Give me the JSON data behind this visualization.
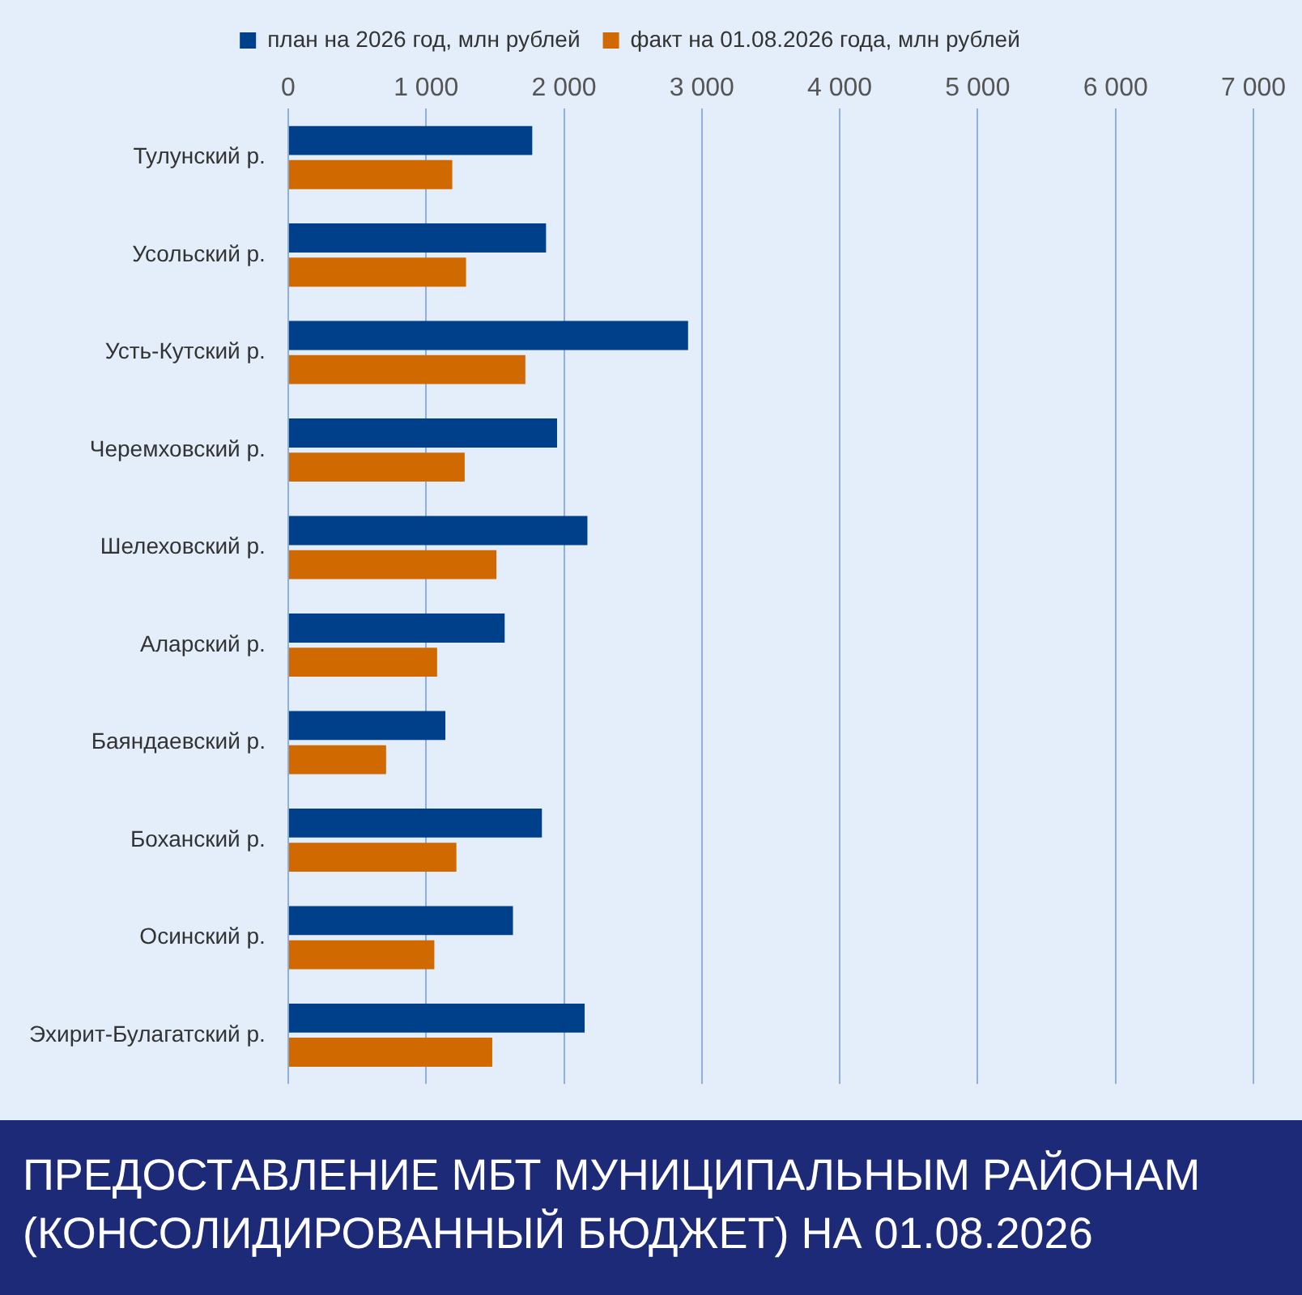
{
  "chart_data": {
    "type": "bar",
    "orientation": "horizontal",
    "title": "ПРЕДОСТАВЛЕНИЕ МБТ МУНИЦИПАЛЬНЫМ РАЙОНАМ (КОНСОЛИДИРОВАННЫЙ БЮДЖЕТ) НА 01.08.2026",
    "categories": [
      "Тулунский р.",
      "Усольский р.",
      "Усть-Кутский р.",
      "Черемховский р.",
      "Шелеховский р.",
      "Аларский р.",
      "Баяндаевский р.",
      "Боханский р.",
      "Осинский р.",
      "Эхирит-Булагатский р."
    ],
    "series": [
      {
        "name": "план на 2026 год, млн рублей",
        "color": "#003f8a",
        "values": [
          1770,
          1870,
          2900,
          1950,
          2170,
          1570,
          1140,
          1840,
          1630,
          2150
        ]
      },
      {
        "name": "факт на 01.08.2026 года, млн рублей",
        "color": "#d06a00",
        "values": [
          1190,
          1290,
          1720,
          1280,
          1510,
          1080,
          710,
          1220,
          1060,
          1480
        ]
      }
    ],
    "xlim": [
      0,
      7000
    ],
    "xticks": [
      0,
      {
        "value": 1000,
        "label": "1 000"
      },
      {
        "value": 2000,
        "label": "2 000"
      },
      {
        "value": 3000,
        "label": "3 000"
      },
      {
        "value": 4000,
        "label": "4 000"
      },
      {
        "value": 5000,
        "label": "5 000"
      },
      {
        "value": 6000,
        "label": "6 000"
      },
      {
        "value": 7000,
        "label": "7 000"
      }
    ],
    "grid": "x",
    "legend": "top"
  }
}
